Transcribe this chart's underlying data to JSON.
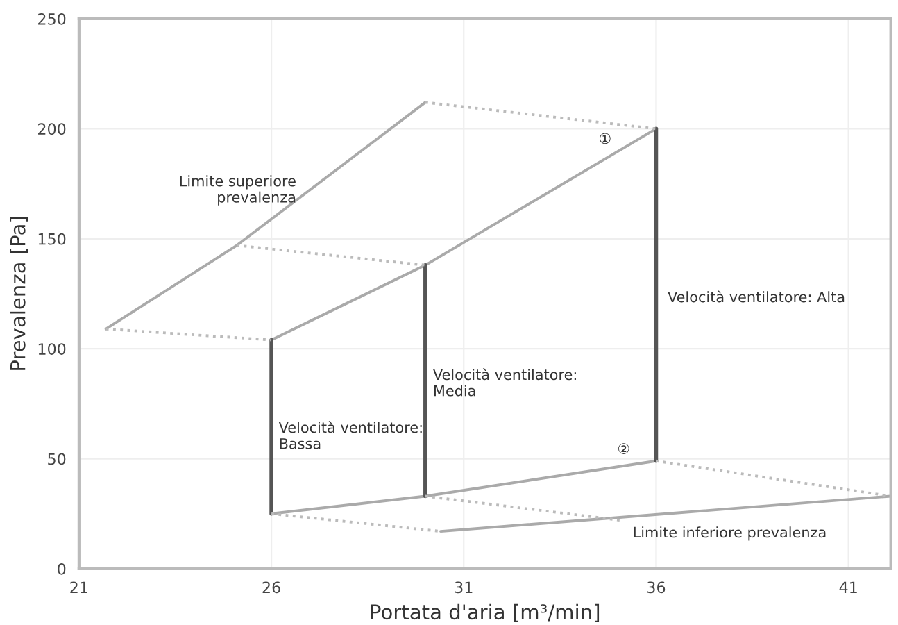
{
  "chart_data": {
    "type": "line",
    "xlabel": "Portata d'aria [m³/min]",
    "ylabel": "Prevalenza [Pa]",
    "xlim": [
      21,
      42.1
    ],
    "ylim": [
      0,
      250
    ],
    "xticks": [
      21,
      26,
      31,
      36,
      41
    ],
    "yticks": [
      0,
      50,
      100,
      150,
      200,
      250
    ],
    "grid": true,
    "marker": "none",
    "series": [
      {
        "color": "#aaaaaa",
        "line_style": "solid",
        "x": [
          21.7,
          25.1,
          30.0
        ],
        "values": [
          109,
          147,
          212
        ]
      },
      {
        "color": "#aaaaaa",
        "line_style": "solid",
        "x": [
          26,
          30,
          36
        ],
        "values": [
          104,
          138,
          200
        ]
      },
      {
        "color": "#aaaaaa",
        "line_style": "solid",
        "x": [
          26,
          30,
          36
        ],
        "values": [
          25,
          33,
          49
        ]
      },
      {
        "color": "#aaaaaa",
        "line_style": "solid",
        "x": [
          30.4,
          42.1
        ],
        "values": [
          17,
          33
        ]
      },
      {
        "color": "#555555",
        "line_style": "solid",
        "x": [
          26,
          26
        ],
        "values": [
          104,
          25
        ]
      },
      {
        "color": "#555555",
        "line_style": "solid",
        "x": [
          30,
          30
        ],
        "values": [
          138,
          33
        ]
      },
      {
        "color": "#555555",
        "line_style": "solid",
        "x": [
          36,
          36
        ],
        "values": [
          200,
          49
        ]
      },
      {
        "color": "#bbbbbb",
        "line_style": "dotted",
        "x": [
          21.7,
          26
        ],
        "values": [
          109,
          104
        ]
      },
      {
        "color": "#bbbbbb",
        "line_style": "dotted",
        "x": [
          25.1,
          30
        ],
        "values": [
          147,
          138
        ]
      },
      {
        "color": "#bbbbbb",
        "line_style": "dotted",
        "x": [
          30.0,
          36
        ],
        "values": [
          212,
          200
        ]
      },
      {
        "color": "#bbbbbb",
        "line_style": "dotted",
        "x": [
          26,
          30.4
        ],
        "values": [
          25,
          17
        ]
      },
      {
        "color": "#bbbbbb",
        "line_style": "dotted",
        "x": [
          30,
          35.1
        ],
        "values": [
          33,
          22
        ]
      },
      {
        "color": "#bbbbbb",
        "line_style": "dotted",
        "x": [
          36,
          42.1
        ],
        "values": [
          49,
          33
        ]
      }
    ],
    "annotations": [
      "Limite superiore\nprevalenza",
      "Velocità ventilatore:\nBassa",
      "Velocità ventilatore:\nMedia",
      "Velocità ventilatore: Alta",
      "Limite inferiore prevalenza",
      "①",
      "②"
    ]
  }
}
